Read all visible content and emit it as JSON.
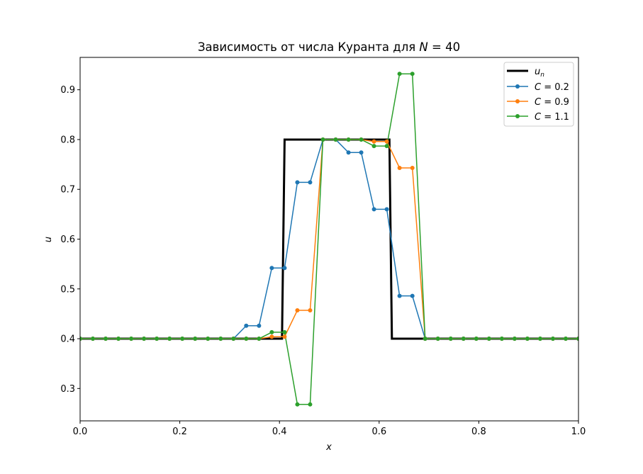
{
  "chart_data": {
    "type": "line",
    "title": "Зависимость от числа Куранта для N = 40",
    "title_parts": {
      "text": "Зависимость от числа Куранта для ",
      "var": "N",
      "rest": " = 40"
    },
    "xlabel": "x",
    "ylabel": "u",
    "xlim": [
      0.0,
      1.0
    ],
    "ylim": [
      0.235,
      0.965
    ],
    "xticks": [
      0.0,
      0.2,
      0.4,
      0.6,
      0.8,
      1.0
    ],
    "xtick_labels": [
      "0.0",
      "0.2",
      "0.4",
      "0.6",
      "0.8",
      "1.0"
    ],
    "yticks": [
      0.3,
      0.4,
      0.5,
      0.6,
      0.7,
      0.8,
      0.9
    ],
    "ytick_labels": [
      "0.3",
      "0.4",
      "0.5",
      "0.6",
      "0.7",
      "0.8",
      "0.9"
    ],
    "grid": false,
    "legend_position": "top-right",
    "x": [
      0.0,
      0.0256,
      0.0513,
      0.0769,
      0.1026,
      0.1282,
      0.1538,
      0.1795,
      0.2051,
      0.2308,
      0.2564,
      0.2821,
      0.3077,
      0.3333,
      0.359,
      0.3846,
      0.4103,
      0.4359,
      0.4615,
      0.4872,
      0.5128,
      0.5385,
      0.5641,
      0.5897,
      0.6154,
      0.641,
      0.6667,
      0.6923,
      0.7179,
      0.7436,
      0.7692,
      0.7949,
      0.8205,
      0.8462,
      0.8718,
      0.8974,
      0.9231,
      0.9487,
      0.9744,
      1.0
    ],
    "exact": {
      "name_var": "u",
      "name_sub": "n",
      "color": "#000000",
      "x": [
        0.0,
        0.4051,
        0.4103,
        0.6206,
        0.6256,
        1.0
      ],
      "y": [
        0.4,
        0.4,
        0.8,
        0.8,
        0.4,
        0.4
      ]
    },
    "series": [
      {
        "name": "C = 0.2",
        "name_var": "C",
        "name_rest": " = 0.2",
        "color": "#1f77b4",
        "values": [
          0.4,
          0.4,
          0.4,
          0.4,
          0.4,
          0.4,
          0.4,
          0.4,
          0.4,
          0.4,
          0.4,
          0.4,
          0.4,
          0.426,
          0.426,
          0.542,
          0.542,
          0.714,
          0.714,
          0.8,
          0.8,
          0.774,
          0.774,
          0.66,
          0.66,
          0.486,
          0.486,
          0.4,
          0.4,
          0.4,
          0.4,
          0.4,
          0.4,
          0.4,
          0.4,
          0.4,
          0.4,
          0.4,
          0.4,
          0.4
        ]
      },
      {
        "name": "C = 0.9",
        "name_var": "C",
        "name_rest": " = 0.9",
        "color": "#ff7f0e",
        "values": [
          0.4,
          0.4,
          0.4,
          0.4,
          0.4,
          0.4,
          0.4,
          0.4,
          0.4,
          0.4,
          0.4,
          0.4,
          0.4,
          0.4,
          0.4,
          0.404,
          0.404,
          0.457,
          0.457,
          0.8,
          0.8,
          0.8,
          0.8,
          0.796,
          0.796,
          0.743,
          0.743,
          0.4,
          0.4,
          0.4,
          0.4,
          0.4,
          0.4,
          0.4,
          0.4,
          0.4,
          0.4,
          0.4,
          0.4,
          0.4
        ]
      },
      {
        "name": "C = 1.1",
        "name_var": "C",
        "name_rest": " = 1.1",
        "color": "#2ca02c",
        "values": [
          0.4,
          0.4,
          0.4,
          0.4,
          0.4,
          0.4,
          0.4,
          0.4,
          0.4,
          0.4,
          0.4,
          0.4,
          0.4,
          0.4,
          0.4,
          0.413,
          0.413,
          0.268,
          0.268,
          0.8,
          0.8,
          0.8,
          0.8,
          0.787,
          0.787,
          0.932,
          0.932,
          0.4,
          0.4,
          0.4,
          0.4,
          0.4,
          0.4,
          0.4,
          0.4,
          0.4,
          0.4,
          0.4,
          0.4,
          0.4
        ]
      }
    ]
  }
}
